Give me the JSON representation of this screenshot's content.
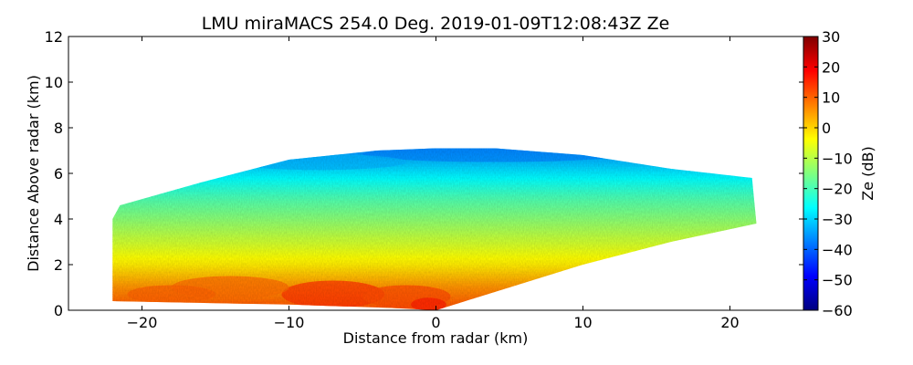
{
  "chart_data": {
    "type": "heatmap",
    "title": "LMU miraMACS 254.0 Deg. 2019-01-09T12:08:43Z  Ze",
    "xlabel": "Distance from radar (km)",
    "ylabel": "Distance Above radar  (km)",
    "xlim": [
      -25,
      25
    ],
    "ylim": [
      0,
      12
    ],
    "xticks": [
      -20,
      -10,
      0,
      10,
      20
    ],
    "xtick_labels": [
      "−20",
      "−10",
      "0",
      "10",
      "20"
    ],
    "yticks": [
      0,
      2,
      4,
      6,
      8,
      10,
      12
    ],
    "ytick_labels": [
      "0",
      "2",
      "4",
      "6",
      "8",
      "10",
      "12"
    ],
    "colorbar": {
      "label": "Ze (dB)",
      "range": [
        -60,
        30
      ],
      "colormap": "jet",
      "ticks": [
        -60,
        -50,
        -40,
        -30,
        -20,
        -10,
        0,
        10,
        20,
        30
      ],
      "tick_labels": [
        "−60",
        "−50",
        "−40",
        "−30",
        "−20",
        "−10",
        "0",
        "10",
        "20",
        "30"
      ]
    },
    "scan": {
      "description": "RHI scan, reflectivity field",
      "left_edge_km": -22,
      "right_edge_km": 21.8,
      "right_edge_height_km": [
        3.8,
        5.8
      ],
      "left_edge_height_km": [
        0.4,
        4.6
      ],
      "cloud_top_km": 7.1,
      "ze_profile_dB": [
        {
          "height_km": 0.0,
          "ze": 12
        },
        {
          "height_km": 1.0,
          "ze": 6
        },
        {
          "height_km": 2.0,
          "ze": -2
        },
        {
          "height_km": 3.0,
          "ze": -8
        },
        {
          "height_km": 4.0,
          "ze": -14
        },
        {
          "height_km": 5.0,
          "ze": -20
        },
        {
          "height_km": 6.0,
          "ze": -28
        },
        {
          "height_km": 7.0,
          "ze": -36
        }
      ]
    }
  }
}
